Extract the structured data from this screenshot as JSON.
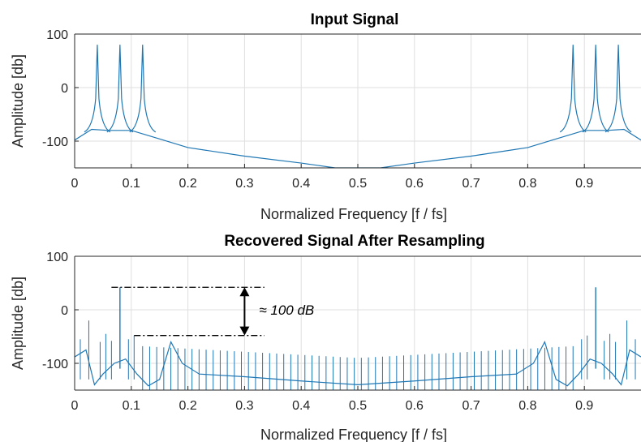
{
  "chart_data": [
    {
      "type": "line",
      "title": "Input Signal",
      "xlabel": "Normalized Frequency [f / fs]",
      "ylabel": "Amplitude [db]",
      "xlim": [
        0,
        1
      ],
      "ylim": [
        -150,
        100
      ],
      "xticks": [
        0,
        0.1,
        0.2,
        0.3,
        0.4,
        0.5,
        0.6,
        0.7,
        0.8,
        0.9
      ],
      "yticks": [
        100,
        0,
        -100
      ],
      "xtick_labels": [
        "0",
        "0.1",
        "0.2",
        "0.3",
        "0.4",
        "0.5",
        "0.6",
        "0.7",
        "0.8",
        "0.9"
      ],
      "ytick_labels": [
        "100",
        "0",
        "-100"
      ],
      "grid": true,
      "line_color": "#1f77b4",
      "series": [
        {
          "peaks": [
            {
              "x": 0.04,
              "y": 80
            },
            {
              "x": 0.08,
              "y": 80
            },
            {
              "x": 0.12,
              "y": 80
            },
            {
              "x": 0.88,
              "y": 80
            },
            {
              "x": 0.92,
              "y": 80
            },
            {
              "x": 0.96,
              "y": 80
            }
          ],
          "floor": [
            {
              "x": 0.0,
              "y": -98
            },
            {
              "x": 0.03,
              "y": -78
            },
            {
              "x": 0.06,
              "y": -80
            },
            {
              "x": 0.1,
              "y": -80
            },
            {
              "x": 0.15,
              "y": -96
            },
            {
              "x": 0.2,
              "y": -112
            },
            {
              "x": 0.3,
              "y": -128
            },
            {
              "x": 0.4,
              "y": -141
            },
            {
              "x": 0.46,
              "y": -150
            },
            {
              "x": 0.54,
              "y": -150
            },
            {
              "x": 0.6,
              "y": -141
            },
            {
              "x": 0.7,
              "y": -128
            },
            {
              "x": 0.8,
              "y": -112
            },
            {
              "x": 0.85,
              "y": -96
            },
            {
              "x": 0.9,
              "y": -80
            },
            {
              "x": 0.94,
              "y": -80
            },
            {
              "x": 0.97,
              "y": -78
            },
            {
              "x": 1.0,
              "y": -98
            }
          ]
        }
      ]
    },
    {
      "type": "line",
      "title": "Recovered Signal After Resampling",
      "xlabel": "Normalized Frequency [f / fs]",
      "ylabel": "Amplitude [db]",
      "xlim": [
        0,
        1
      ],
      "ylim": [
        -150,
        100
      ],
      "xticks": [
        0,
        0.1,
        0.2,
        0.3,
        0.4,
        0.5,
        0.6,
        0.7,
        0.8,
        0.9
      ],
      "yticks": [
        100,
        0,
        -100
      ],
      "xtick_labels": [
        "0",
        "0.1",
        "0.2",
        "0.3",
        "0.4",
        "0.5",
        "0.6",
        "0.7",
        "0.8",
        "0.9"
      ],
      "ytick_labels": [
        "100",
        "0",
        "-100"
      ],
      "grid": true,
      "line_color": "#1f77b4",
      "series": [
        {
          "main_peaks": [
            {
              "x": 0.08,
              "y": 42
            },
            {
              "x": 0.92,
              "y": 42
            }
          ],
          "spur_comb": {
            "x_start": 0.12,
            "x_end": 0.88,
            "count": 62,
            "y_top_edge": -68,
            "y_top_center": -90
          },
          "baseline": [
            {
              "x": 0.0,
              "y": -88
            },
            {
              "x": 0.02,
              "y": -75
            },
            {
              "x": 0.035,
              "y": -140
            },
            {
              "x": 0.05,
              "y": -120
            },
            {
              "x": 0.07,
              "y": -100
            },
            {
              "x": 0.09,
              "y": -92
            },
            {
              "x": 0.11,
              "y": -120
            },
            {
              "x": 0.13,
              "y": -142
            },
            {
              "x": 0.15,
              "y": -130
            },
            {
              "x": 0.17,
              "y": -60
            },
            {
              "x": 0.19,
              "y": -100
            },
            {
              "x": 0.22,
              "y": -120
            },
            {
              "x": 0.3,
              "y": -125
            },
            {
              "x": 0.4,
              "y": -133
            },
            {
              "x": 0.5,
              "y": -140
            },
            {
              "x": 0.6,
              "y": -133
            },
            {
              "x": 0.7,
              "y": -125
            },
            {
              "x": 0.78,
              "y": -120
            },
            {
              "x": 0.81,
              "y": -100
            },
            {
              "x": 0.83,
              "y": -60
            },
            {
              "x": 0.85,
              "y": -130
            },
            {
              "x": 0.87,
              "y": -142
            },
            {
              "x": 0.89,
              "y": -120
            },
            {
              "x": 0.91,
              "y": -92
            },
            {
              "x": 0.93,
              "y": -100
            },
            {
              "x": 0.95,
              "y": -120
            },
            {
              "x": 0.965,
              "y": -140
            },
            {
              "x": 0.98,
              "y": -75
            },
            {
              "x": 1.0,
              "y": -88
            }
          ]
        }
      ],
      "annotations": [
        {
          "type": "hline-dashdot",
          "y": 42,
          "x_start": 0.065,
          "x_end": 0.335
        },
        {
          "type": "hline-dashdot",
          "y": -48,
          "x_start": 0.105,
          "x_end": 0.335
        },
        {
          "type": "double-arrow",
          "x": 0.3,
          "y_top": 42,
          "y_bottom": -48
        },
        {
          "type": "text",
          "text": "≈ 100 dB",
          "x": 0.34,
          "y": 0
        }
      ]
    }
  ]
}
